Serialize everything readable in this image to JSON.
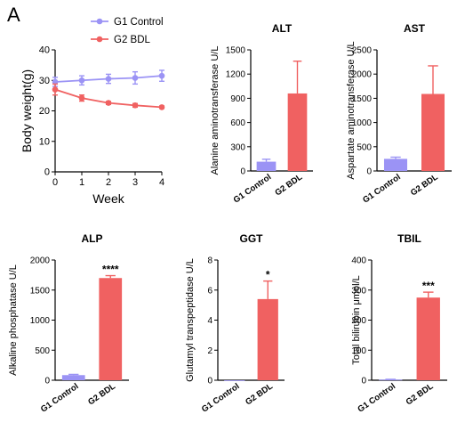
{
  "panel_label": "A",
  "colors": {
    "control": "#9b93f5",
    "bdl": "#f06161",
    "axis": "#000000"
  },
  "chart_data": [
    {
      "id": "bw",
      "type": "line",
      "title": "",
      "xlabel": "Week",
      "ylabel": "Body weight(g)",
      "x": [
        0,
        1,
        2,
        3,
        4
      ],
      "xlim": [
        0,
        4
      ],
      "ylim": [
        0,
        40
      ],
      "xticks": [
        "0",
        "1",
        "2",
        "3",
        "4"
      ],
      "yticks": [
        "0",
        "10",
        "20",
        "30",
        "40"
      ],
      "grid": false,
      "legend": "top",
      "series": [
        {
          "name": "G1 Control",
          "values": [
            29.5,
            30.0,
            30.5,
            30.8,
            31.5
          ],
          "errors": [
            1.5,
            1.5,
            1.5,
            2.0,
            1.8
          ]
        },
        {
          "name": "G2 BDL",
          "values": [
            27.0,
            24.2,
            22.6,
            21.8,
            21.2
          ],
          "errors": [
            1.8,
            1.0,
            0.5,
            0.6,
            0.4
          ]
        }
      ]
    },
    {
      "id": "alt",
      "type": "bar",
      "title": "ALT",
      "ylabel": "Alanine aminotransferase U/L",
      "categories": [
        "G1 Control",
        "G2 BDL"
      ],
      "values": [
        115,
        960
      ],
      "errors": [
        30,
        400
      ],
      "ylim": [
        0,
        1500
      ],
      "yticks": [
        "0",
        "300",
        "600",
        "900",
        "1200",
        "1500"
      ],
      "significance": [
        "",
        ""
      ]
    },
    {
      "id": "ast",
      "type": "bar",
      "title": "AST",
      "ylabel": "Aspartate aminotransferase U/L",
      "categories": [
        "G1 Control",
        "G2 BDL"
      ],
      "values": [
        250,
        1590
      ],
      "errors": [
        35,
        580
      ],
      "ylim": [
        0,
        2500
      ],
      "yticks": [
        "0",
        "500",
        "1000",
        "1500",
        "2000",
        "2500"
      ],
      "significance": [
        "",
        ""
      ]
    },
    {
      "id": "alp",
      "type": "bar",
      "title": "ALP",
      "ylabel": "Alkaline phosphatase U/L",
      "categories": [
        "G1 Control",
        "G2 BDL"
      ],
      "values": [
        85,
        1700
      ],
      "errors": [
        12,
        40
      ],
      "ylim": [
        0,
        2000
      ],
      "yticks": [
        "0",
        "500",
        "1000",
        "1500",
        "2000"
      ],
      "significance": [
        "",
        "****"
      ]
    },
    {
      "id": "ggt",
      "type": "bar",
      "title": "GGT",
      "ylabel": "Glutamyl transpeptidase U/L",
      "categories": [
        "G1 Control",
        "G2 BDL"
      ],
      "values": [
        0,
        5.4
      ],
      "errors": [
        0,
        1.2
      ],
      "ylim": [
        0,
        8
      ],
      "yticks": [
        "0",
        "2",
        "4",
        "6",
        "8"
      ],
      "significance": [
        "",
        "*"
      ]
    },
    {
      "id": "tbil",
      "type": "bar",
      "title": "TBIL",
      "ylabel": "Total bilirubin μmol/L",
      "categories": [
        "G1 Control",
        "G2 BDL"
      ],
      "values": [
        2,
        275
      ],
      "errors": [
        1,
        18
      ],
      "ylim": [
        0,
        400
      ],
      "yticks": [
        "0",
        "100",
        "200",
        "300",
        "400"
      ],
      "significance": [
        "",
        "***"
      ]
    }
  ]
}
